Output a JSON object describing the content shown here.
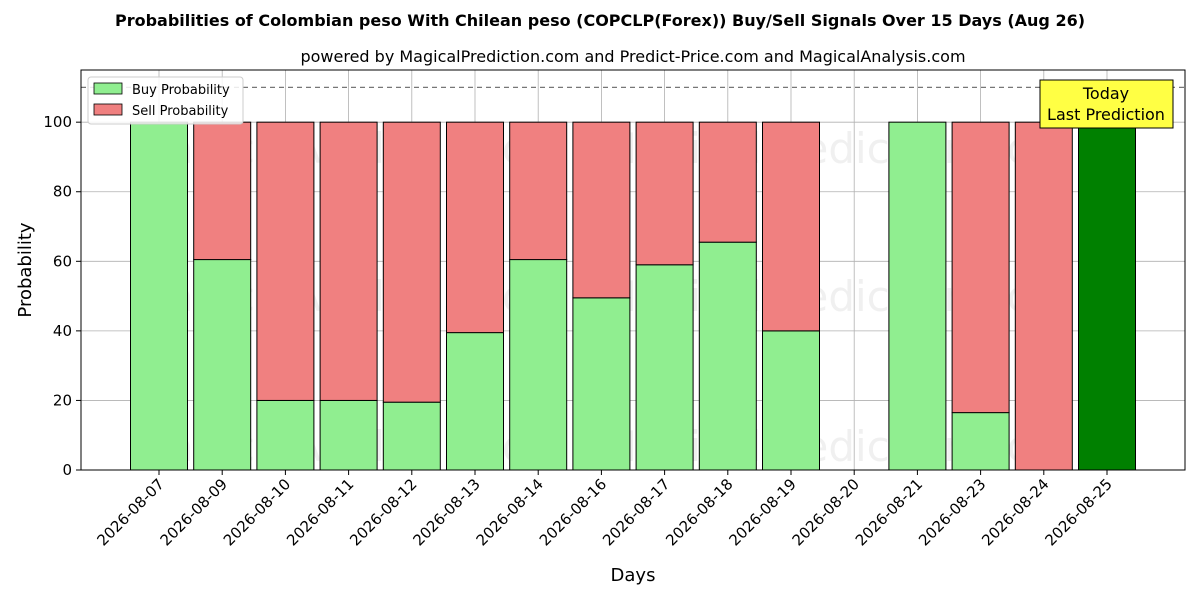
{
  "chart_data": {
    "type": "bar",
    "stacked": true,
    "title": "Probabilities of Colombian peso With Chilean peso (COPCLP(Forex)) Buy/Sell Signals Over 15 Days (Aug 26)",
    "subtitle": "powered by MagicalPrediction.com and Predict-Price.com and MagicalAnalysis.com",
    "xlabel": "Days",
    "ylabel": "Probability",
    "ylim": [
      0,
      115
    ],
    "yticks": [
      0,
      20,
      40,
      60,
      80,
      100
    ],
    "reference_line": 110,
    "grid": true,
    "legend_position": "top-left",
    "categories": [
      "2026-08-07",
      "2026-08-09",
      "2026-08-10",
      "2026-08-11",
      "2026-08-12",
      "2026-08-13",
      "2026-08-14",
      "2026-08-16",
      "2026-08-17",
      "2026-08-18",
      "2026-08-19",
      "2026-08-20",
      "2026-08-21",
      "2026-08-23",
      "2026-08-24",
      "2026-08-25"
    ],
    "series": [
      {
        "name": "Buy Probability",
        "color": "#90ee90",
        "values": [
          100,
          60.5,
          20,
          20,
          19.5,
          39.5,
          60.5,
          49.5,
          59,
          65.5,
          40,
          0,
          100,
          16.5,
          0,
          100
        ]
      },
      {
        "name": "Sell Probability",
        "color": "#f08080",
        "values": [
          0,
          39.5,
          80,
          80,
          80.5,
          60.5,
          39.5,
          50.5,
          41,
          34.5,
          60,
          0,
          0,
          83.5,
          100,
          0
        ]
      }
    ],
    "highlight": {
      "index": 15,
      "color": "#008000"
    },
    "annotation": {
      "line1": "Today",
      "line2": "Last Prediction",
      "background": "#ffff44"
    },
    "watermark": [
      "MagicalAnalysis.com",
      "MagicalPrediction.com"
    ]
  }
}
